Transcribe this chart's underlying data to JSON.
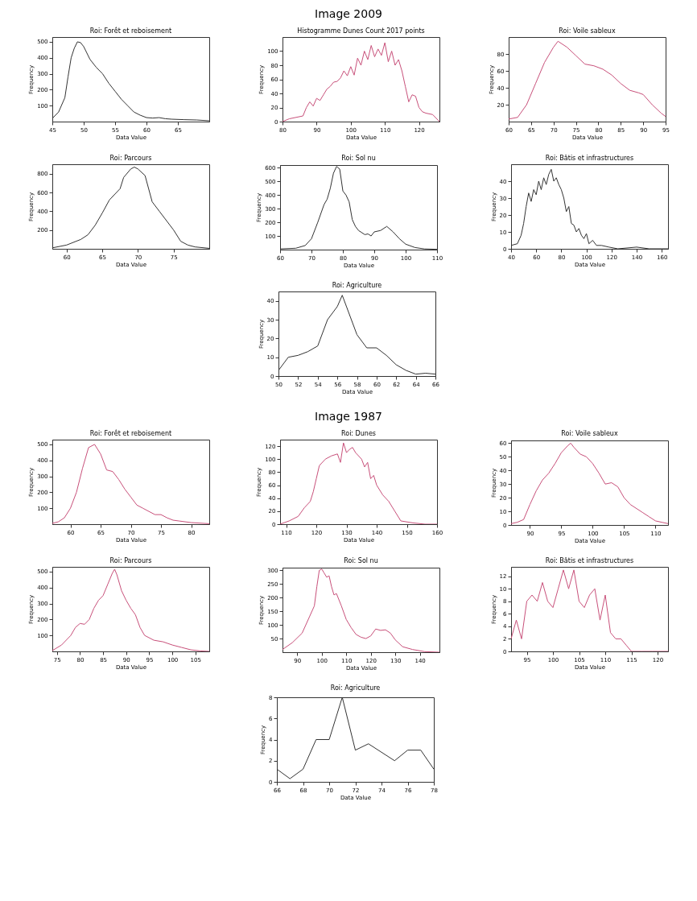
{
  "chart_data": [
    {
      "type": "line",
      "title": "Roi: Forêt et reboisement",
      "xlabel": "Data Value",
      "ylabel": "Frequency",
      "annotations": [
        "Image 2009"
      ],
      "grid": false,
      "marker": "none",
      "line_style": "solid",
      "xlim": [
        45,
        70
      ],
      "xticks": [
        45,
        50,
        55,
        60,
        65
      ],
      "ylim": [
        0,
        530
      ],
      "yticks": [
        100,
        200,
        300,
        400,
        500
      ],
      "x": [
        45,
        46,
        47,
        47.5,
        48,
        48.5,
        49,
        49.5,
        50,
        51,
        52,
        53,
        54,
        55,
        56,
        57,
        58,
        59,
        60,
        61,
        62,
        63,
        64,
        66,
        68,
        70
      ],
      "series": [
        {
          "color": "#333333",
          "values": [
            20,
            60,
            150,
            280,
            400,
            460,
            500,
            495,
            470,
            390,
            340,
            300,
            240,
            190,
            140,
            100,
            60,
            40,
            25,
            22,
            25,
            18,
            15,
            12,
            10,
            5
          ]
        }
      ]
    },
    {
      "type": "line",
      "title": "Histogramme Dunes Count 2017 points",
      "xlabel": "Data Value",
      "ylabel": "Frequency",
      "grid": false,
      "marker": "none",
      "line_style": "solid",
      "xlim": [
        80,
        126
      ],
      "xticks": [
        80,
        90,
        100,
        110,
        120
      ],
      "ylim": [
        0,
        120
      ],
      "yticks": [
        0,
        20,
        40,
        60,
        80,
        100
      ],
      "x": [
        80,
        82,
        84,
        86,
        87,
        88,
        89,
        90,
        91,
        92,
        93,
        94,
        95,
        96,
        97,
        98,
        99,
        100,
        101,
        102,
        103,
        104,
        105,
        106,
        107,
        108,
        109,
        110,
        111,
        112,
        113,
        114,
        115,
        116,
        117,
        118,
        119,
        120,
        121,
        122,
        124,
        126
      ],
      "series": [
        {
          "color": "#c8507a",
          "values": [
            0,
            4,
            6,
            8,
            20,
            28,
            22,
            33,
            30,
            38,
            46,
            50,
            56,
            57,
            62,
            72,
            65,
            78,
            66,
            90,
            80,
            100,
            88,
            108,
            92,
            103,
            94,
            112,
            85,
            100,
            80,
            88,
            72,
            50,
            28,
            38,
            36,
            20,
            14,
            12,
            10,
            0
          ]
        }
      ]
    },
    {
      "type": "line",
      "title": "Roi: Voile sableux",
      "xlabel": "Data Value",
      "ylabel": "Frequency",
      "grid": false,
      "marker": "none",
      "line_style": "solid",
      "xlim": [
        60,
        95
      ],
      "xticks": [
        60,
        65,
        70,
        75,
        80,
        85,
        90,
        95
      ],
      "ylim": [
        0,
        100
      ],
      "yticks": [
        20,
        40,
        60,
        80
      ],
      "x": [
        60,
        62,
        64,
        66,
        68,
        70,
        71,
        73,
        75,
        77,
        79,
        81,
        83,
        85,
        87,
        89,
        90,
        92,
        94,
        95
      ],
      "series": [
        {
          "color": "#c8507a",
          "values": [
            3,
            5,
            20,
            45,
            70,
            88,
            95,
            88,
            78,
            68,
            66,
            62,
            55,
            45,
            37,
            34,
            32,
            20,
            10,
            6
          ]
        }
      ]
    },
    {
      "type": "line",
      "title": "Roi: Parcours",
      "xlabel": "Data Value",
      "ylabel": "Frequency",
      "grid": false,
      "marker": "none",
      "line_style": "solid",
      "xlim": [
        58,
        80
      ],
      "xticks": [
        60,
        65,
        70,
        75
      ],
      "ylim": [
        0,
        900
      ],
      "yticks": [
        200,
        400,
        600,
        800
      ],
      "x": [
        58,
        60,
        62,
        63,
        64,
        65,
        66,
        67,
        67.5,
        68,
        69,
        69.5,
        70,
        71,
        72,
        73,
        74,
        75,
        76,
        77,
        78,
        80
      ],
      "series": [
        {
          "color": "#333333",
          "values": [
            10,
            40,
            100,
            150,
            250,
            380,
            520,
            600,
            640,
            760,
            850,
            870,
            850,
            780,
            500,
            400,
            300,
            200,
            80,
            40,
            20,
            5
          ]
        }
      ]
    },
    {
      "type": "line",
      "title": "Roi: Sol nu",
      "xlabel": "Data Value",
      "ylabel": "Frequency",
      "grid": false,
      "marker": "none",
      "line_style": "solid",
      "xlim": [
        60,
        110
      ],
      "xticks": [
        60,
        70,
        80,
        90,
        100,
        110
      ],
      "ylim": [
        0,
        620
      ],
      "yticks": [
        100,
        200,
        300,
        400,
        500,
        600
      ],
      "x": [
        60,
        65,
        68,
        70,
        72,
        74,
        75,
        76,
        77,
        78,
        79,
        80,
        81,
        82,
        83,
        84,
        85,
        87,
        88,
        89,
        90,
        92,
        94,
        96,
        98,
        100,
        103,
        106,
        110
      ],
      "series": [
        {
          "color": "#333333",
          "values": [
            5,
            10,
            30,
            80,
            200,
            330,
            370,
            450,
            560,
            610,
            590,
            430,
            400,
            350,
            220,
            170,
            140,
            110,
            115,
            100,
            130,
            140,
            170,
            130,
            80,
            40,
            15,
            5,
            2
          ]
        }
      ]
    },
    {
      "type": "line",
      "title": "Roi: Bâtis et infrastructures",
      "xlabel": "Data Value",
      "ylabel": "Frequency",
      "grid": false,
      "marker": "none",
      "line_style": "solid",
      "xlim": [
        40,
        165
      ],
      "xticks": [
        40,
        60,
        80,
        100,
        120,
        140,
        160
      ],
      "ylim": [
        0,
        50
      ],
      "yticks": [
        0,
        10,
        20,
        30,
        40
      ],
      "x": [
        40,
        45,
        48,
        50,
        52,
        54,
        56,
        58,
        60,
        62,
        64,
        66,
        68,
        70,
        72,
        74,
        76,
        78,
        80,
        82,
        84,
        86,
        88,
        90,
        92,
        94,
        96,
        98,
        100,
        102,
        105,
        108,
        112,
        118,
        125,
        140,
        150,
        165
      ],
      "series": [
        {
          "color": "#333333",
          "values": [
            2,
            3,
            8,
            15,
            25,
            33,
            28,
            35,
            32,
            40,
            35,
            42,
            38,
            44,
            47,
            40,
            42,
            38,
            35,
            30,
            22,
            25,
            15,
            14,
            10,
            12,
            8,
            6,
            9,
            3,
            5,
            2,
            2,
            1,
            0,
            1,
            0,
            0
          ]
        }
      ]
    },
    {
      "type": "line",
      "title": "Roi: Agriculture",
      "xlabel": "Data Value",
      "ylabel": "Frequency",
      "grid": false,
      "marker": "none",
      "line_style": "solid",
      "xlim": [
        50,
        66
      ],
      "xticks": [
        50,
        52,
        54,
        56,
        58,
        60,
        62,
        64,
        66
      ],
      "ylim": [
        0,
        45
      ],
      "yticks": [
        0,
        10,
        20,
        30,
        40
      ],
      "x": [
        50,
        51,
        52,
        53,
        54,
        55,
        56,
        56.5,
        57,
        58,
        59,
        60,
        61,
        62,
        63,
        64,
        65,
        66
      ],
      "series": [
        {
          "color": "#333333",
          "values": [
            3,
            10,
            11,
            13,
            16,
            30,
            37,
            43,
            36,
            22,
            15,
            15,
            11,
            6,
            3,
            1,
            1.5,
            1
          ]
        }
      ]
    },
    {
      "type": "line",
      "title": "Roi: Forêt et reboisement",
      "xlabel": "Data Value",
      "ylabel": "Frequency",
      "annotations": [
        "Image 1987"
      ],
      "grid": false,
      "marker": "none",
      "line_style": "solid",
      "xlim": [
        57,
        83
      ],
      "xticks": [
        60,
        65,
        70,
        75,
        80
      ],
      "ylim": [
        0,
        530
      ],
      "yticks": [
        100,
        200,
        300,
        400,
        500
      ],
      "x": [
        57,
        58,
        59,
        60,
        61,
        62,
        63,
        64,
        65,
        66,
        67,
        68,
        69,
        70,
        71,
        72,
        73,
        74,
        75,
        76,
        77,
        78,
        80,
        83
      ],
      "series": [
        {
          "color": "#c8507a",
          "values": [
            5,
            15,
            40,
            100,
            200,
            350,
            480,
            500,
            440,
            340,
            330,
            280,
            220,
            170,
            120,
            100,
            80,
            60,
            60,
            40,
            25,
            20,
            10,
            3
          ]
        }
      ]
    },
    {
      "type": "line",
      "title": "Roi: Dunes",
      "xlabel": "Data Value",
      "ylabel": "Frequency",
      "grid": false,
      "marker": "none",
      "line_style": "solid",
      "xlim": [
        108,
        160
      ],
      "xticks": [
        110,
        120,
        130,
        140,
        150,
        160
      ],
      "ylim": [
        0,
        130
      ],
      "yticks": [
        0,
        20,
        40,
        60,
        80,
        100,
        120
      ],
      "x": [
        108,
        111,
        114,
        116,
        118,
        119,
        120,
        121,
        123,
        125,
        127,
        128,
        129,
        130,
        131,
        132,
        133,
        135,
        136,
        137,
        138,
        139,
        140,
        142,
        144,
        146,
        148,
        152,
        156,
        160
      ],
      "series": [
        {
          "color": "#c8507a",
          "values": [
            0,
            5,
            12,
            25,
            35,
            50,
            70,
            90,
            100,
            105,
            108,
            95,
            125,
            110,
            115,
            118,
            110,
            100,
            88,
            95,
            70,
            75,
            60,
            45,
            35,
            20,
            5,
            2,
            0,
            0
          ]
        }
      ]
    },
    {
      "type": "line",
      "title": "Roi: Voile sableux",
      "xlabel": "Data Value",
      "ylabel": "Frequency",
      "grid": false,
      "marker": "none",
      "line_style": "solid",
      "xlim": [
        87,
        112
      ],
      "xticks": [
        90,
        95,
        100,
        105,
        110
      ],
      "ylim": [
        0,
        62
      ],
      "yticks": [
        0,
        10,
        20,
        30,
        40,
        50,
        60
      ],
      "x": [
        87,
        88,
        89,
        90,
        91,
        92,
        93,
        94,
        95,
        96,
        96.5,
        97,
        98,
        99,
        100,
        101,
        102,
        103,
        104,
        105,
        106,
        107,
        108,
        109,
        110,
        111,
        112
      ],
      "series": [
        {
          "color": "#c8507a",
          "values": [
            1,
            2,
            4,
            15,
            25,
            33,
            38,
            45,
            53,
            58,
            60,
            57,
            52,
            50,
            45,
            38,
            30,
            31,
            28,
            20,
            15,
            12,
            9,
            6,
            3,
            2,
            1
          ]
        }
      ]
    },
    {
      "type": "line",
      "title": "Roi: Parcours",
      "xlabel": "Data Value",
      "ylabel": "Frequency",
      "grid": false,
      "marker": "none",
      "line_style": "solid",
      "xlim": [
        74,
        108
      ],
      "xticks": [
        75,
        80,
        85,
        90,
        95,
        100,
        105
      ],
      "ylim": [
        0,
        530
      ],
      "yticks": [
        100,
        200,
        300,
        400,
        500
      ],
      "x": [
        74,
        76,
        78,
        79,
        80,
        81,
        82,
        83,
        84,
        85,
        86,
        87,
        87.5,
        88,
        89,
        90,
        91,
        92,
        93,
        94,
        96,
        98,
        100,
        102,
        104,
        106,
        108
      ],
      "series": [
        {
          "color": "#c8507a",
          "values": [
            5,
            40,
            100,
            150,
            175,
            170,
            200,
            270,
            320,
            350,
            420,
            490,
            515,
            480,
            380,
            320,
            270,
            230,
            150,
            100,
            70,
            60,
            40,
            25,
            10,
            3,
            0
          ]
        }
      ]
    },
    {
      "type": "line",
      "title": "Roi: Sol nu",
      "xlabel": "Data Value",
      "ylabel": "Frequency",
      "grid": false,
      "marker": "none",
      "line_style": "solid",
      "xlim": [
        84,
        148
      ],
      "xticks": [
        90,
        100,
        110,
        120,
        130,
        140
      ],
      "ylim": [
        0,
        310
      ],
      "yticks": [
        50,
        100,
        150,
        200,
        250,
        300
      ],
      "x": [
        84,
        88,
        92,
        95,
        97,
        98,
        99,
        100,
        101,
        102,
        103,
        104,
        105,
        106,
        108,
        110,
        112,
        114,
        116,
        118,
        120,
        122,
        124,
        126,
        128,
        130,
        133,
        137,
        142,
        148
      ],
      "series": [
        {
          "color": "#c8507a",
          "values": [
            10,
            35,
            70,
            130,
            170,
            240,
            300,
            305,
            290,
            275,
            280,
            240,
            210,
            215,
            170,
            120,
            90,
            65,
            55,
            50,
            60,
            85,
            80,
            82,
            70,
            45,
            20,
            10,
            2,
            0
          ]
        }
      ]
    },
    {
      "type": "line",
      "title": "Roi: Bâtis et infrastructures",
      "xlabel": "Data Value",
      "ylabel": "Frequency",
      "grid": false,
      "marker": "none",
      "line_style": "solid",
      "xlim": [
        92,
        122
      ],
      "xticks": [
        95,
        100,
        105,
        110,
        115,
        120
      ],
      "ylim": [
        0,
        13.5
      ],
      "yticks": [
        0,
        2,
        4,
        6,
        8,
        10,
        12
      ],
      "x": [
        92,
        93,
        94,
        95,
        96,
        97,
        98,
        99,
        100,
        101,
        102,
        103,
        104,
        105,
        106,
        107,
        108,
        109,
        110,
        111,
        112,
        113,
        114,
        115,
        117,
        119,
        122
      ],
      "series": [
        {
          "color": "#c8507a",
          "values": [
            2,
            5,
            2,
            8,
            9,
            8,
            11,
            8,
            7,
            10,
            13,
            10,
            13,
            8,
            7,
            9,
            10,
            5,
            9,
            3,
            2,
            2,
            1,
            0,
            0,
            0,
            0
          ]
        }
      ]
    },
    {
      "type": "line",
      "title": "Roi: Agriculture",
      "xlabel": "Data Value",
      "ylabel": "Frequency",
      "grid": false,
      "marker": "none",
      "line_style": "solid",
      "xlim": [
        66,
        78
      ],
      "xticks": [
        66,
        68,
        70,
        72,
        74,
        76,
        78
      ],
      "ylim": [
        0,
        8
      ],
      "yticks": [
        0,
        2,
        4,
        6,
        8
      ],
      "x": [
        66,
        67,
        68,
        69,
        70,
        71,
        72,
        73,
        75,
        76,
        77,
        78
      ],
      "series": [
        {
          "color": "#333333",
          "values": [
            1.2,
            0.3,
            1.2,
            4,
            4,
            8,
            3,
            3.6,
            2,
            3,
            3,
            1.2
          ]
        }
      ]
    }
  ]
}
